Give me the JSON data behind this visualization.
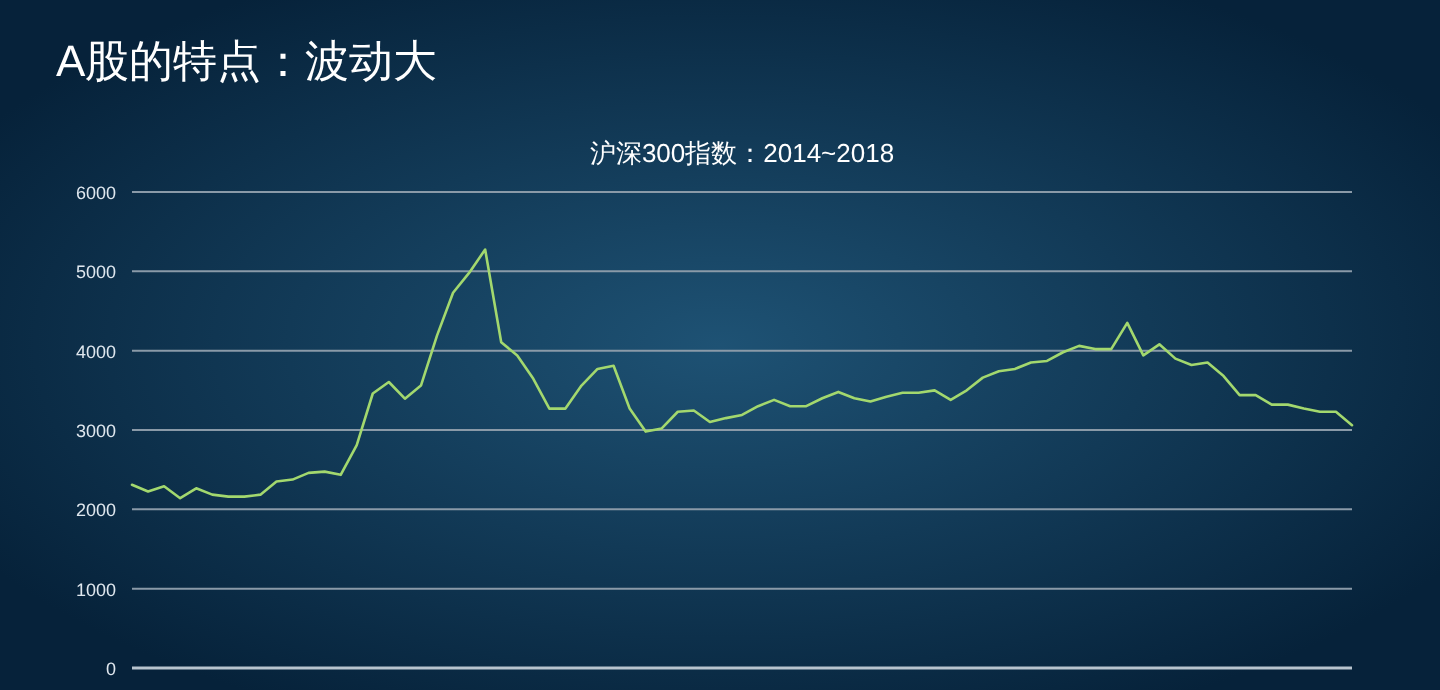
{
  "chart_data": {
    "type": "line",
    "title": "A股的特点：波动大",
    "subtitle": "沪深300指数：2014~2018",
    "categories": [
      null,
      null,
      null,
      null,
      null,
      null,
      null,
      null,
      null,
      null,
      null,
      null,
      null,
      null,
      null,
      null,
      null,
      null,
      null,
      null,
      null,
      null,
      null,
      null,
      null,
      null,
      null,
      null,
      null,
      null,
      null,
      null,
      null,
      null,
      null,
      null,
      null,
      null,
      null,
      null,
      null,
      null,
      null,
      null,
      null,
      null,
      null,
      null,
      null,
      null,
      null,
      null,
      null,
      null,
      null,
      null,
      null,
      null,
      null,
      null,
      null,
      null,
      null,
      null,
      null,
      null,
      null,
      null,
      null,
      null,
      null,
      null,
      null,
      null,
      null,
      null,
      null
    ],
    "series": [
      {
        "color": "#a3d86e",
        "values": [
          2310,
          2225,
          2290,
          2140,
          2265,
          2185,
          2160,
          2160,
          2185,
          2350,
          2375,
          2460,
          2475,
          2435,
          2810,
          3460,
          3605,
          3395,
          3560,
          4190,
          4730,
          4980,
          5275,
          4105,
          3940,
          3645,
          3270,
          3270,
          3560,
          3770,
          3810,
          3270,
          2980,
          3020,
          3230,
          3245,
          3100,
          3150,
          3190,
          3300,
          3380,
          3300,
          3300,
          3400,
          3480,
          3400,
          3360,
          3420,
          3470,
          3470,
          3500,
          3380,
          3500,
          3660,
          3740,
          3770,
          3850,
          3870,
          3980,
          4060,
          4020,
          4020,
          4350,
          3940,
          4080,
          3900,
          3820,
          3850,
          3680,
          3440,
          3440,
          3320,
          3320,
          3270,
          3230,
          3230,
          3060
        ]
      }
    ],
    "ylim": [
      0,
      6000
    ],
    "yticks": [
      0,
      1000,
      2000,
      3000,
      4000,
      5000,
      6000
    ],
    "grid": "y",
    "marker": "none",
    "line_style": "solid"
  }
}
